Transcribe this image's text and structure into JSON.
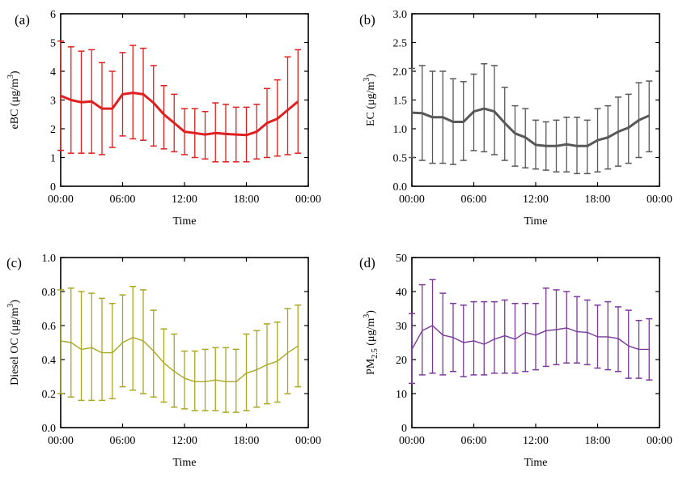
{
  "chart_data": [
    {
      "type": "line",
      "panel_label": "(a)",
      "xlabel": "Time",
      "ylabel": "eBC (μg/m³)",
      "ylabel_parts": {
        "prefix": "eBC (μg/m",
        "sup": "3",
        "suffix": ")"
      },
      "ylim": [
        0,
        6
      ],
      "yticks": [
        0,
        1,
        2,
        3,
        4,
        5,
        6
      ],
      "ytick_labels": [
        "0",
        "1",
        "2",
        "3",
        "4",
        "5",
        "6"
      ],
      "xlim": [
        0,
        24
      ],
      "xticks": [
        0,
        6,
        12,
        18,
        24
      ],
      "xtick_labels": [
        "00:00",
        "06:00",
        "12:00",
        "18:00",
        "00:00"
      ],
      "color": "#e02020",
      "line_weight": "thick",
      "series": [
        {
          "name": "eBC",
          "x": [
            0,
            1,
            2,
            3,
            4,
            5,
            6,
            7,
            8,
            9,
            10,
            11,
            12,
            13,
            14,
            15,
            16,
            17,
            18,
            19,
            20,
            21,
            22,
            23
          ],
          "values": [
            3.15,
            3.0,
            2.92,
            2.95,
            2.7,
            2.7,
            3.2,
            3.25,
            3.2,
            2.9,
            2.5,
            2.2,
            1.9,
            1.85,
            1.8,
            1.85,
            1.82,
            1.8,
            1.78,
            1.9,
            2.2,
            2.35,
            2.65,
            2.95
          ],
          "upper": [
            5.05,
            4.85,
            4.7,
            4.75,
            4.3,
            4.0,
            4.65,
            4.9,
            4.8,
            4.2,
            3.5,
            3.2,
            2.7,
            2.7,
            2.6,
            2.9,
            2.85,
            2.75,
            2.75,
            2.85,
            3.4,
            3.7,
            4.5,
            4.75
          ],
          "lower": [
            1.25,
            1.15,
            1.15,
            1.15,
            1.1,
            1.35,
            1.75,
            1.65,
            1.6,
            1.4,
            1.3,
            1.2,
            1.1,
            1.0,
            0.95,
            0.85,
            0.85,
            0.85,
            0.85,
            0.95,
            1.0,
            1.05,
            1.1,
            1.15
          ]
        }
      ]
    },
    {
      "type": "line",
      "panel_label": "(b)",
      "xlabel": "Time",
      "ylabel": "EC (μg/m³)",
      "ylabel_parts": {
        "prefix": "EC (μg/m",
        "sup": "3",
        "suffix": ")"
      },
      "ylim": [
        0,
        3.0
      ],
      "yticks": [
        0,
        0.5,
        1.0,
        1.5,
        2.0,
        2.5,
        3.0
      ],
      "ytick_labels": [
        "0.0",
        "0.5",
        "1.0",
        "1.5",
        "2.0",
        "2.5",
        "3.0"
      ],
      "xlim": [
        0,
        24
      ],
      "xticks": [
        0,
        6,
        12,
        18,
        24
      ],
      "xtick_labels": [
        "00:00",
        "06:00",
        "12:00",
        "18:00",
        "00:00"
      ],
      "color": "#585858",
      "line_weight": "thick",
      "series": [
        {
          "name": "EC",
          "x": [
            0,
            1,
            2,
            3,
            4,
            5,
            6,
            7,
            8,
            9,
            10,
            11,
            12,
            13,
            14,
            15,
            16,
            17,
            18,
            19,
            20,
            21,
            22,
            23
          ],
          "values": [
            1.28,
            1.27,
            1.2,
            1.2,
            1.12,
            1.12,
            1.3,
            1.35,
            1.3,
            1.1,
            0.92,
            0.85,
            0.72,
            0.7,
            0.7,
            0.73,
            0.7,
            0.7,
            0.8,
            0.85,
            0.95,
            1.02,
            1.15,
            1.23
          ],
          "upper": [
            2.05,
            2.1,
            2.0,
            2.0,
            1.87,
            1.82,
            1.95,
            2.13,
            2.1,
            1.72,
            1.4,
            1.35,
            1.15,
            1.12,
            1.15,
            1.2,
            1.2,
            1.15,
            1.35,
            1.4,
            1.55,
            1.6,
            1.8,
            1.83
          ],
          "lower": [
            0.5,
            0.45,
            0.4,
            0.4,
            0.38,
            0.45,
            0.62,
            0.6,
            0.55,
            0.45,
            0.35,
            0.32,
            0.3,
            0.28,
            0.25,
            0.25,
            0.22,
            0.22,
            0.25,
            0.3,
            0.35,
            0.4,
            0.5,
            0.6
          ]
        }
      ]
    },
    {
      "type": "line",
      "panel_label": "(c)",
      "xlabel": "Time",
      "ylabel": "Diesel OC (μg/m³)",
      "ylabel_parts": {
        "prefix": "Diesel OC (μg/m",
        "sup": "3",
        "suffix": ")"
      },
      "ylim": [
        0,
        1.0
      ],
      "yticks": [
        0,
        0.2,
        0.4,
        0.6,
        0.8,
        1.0
      ],
      "ytick_labels": [
        "0.0",
        "0.2",
        "0.4",
        "0.6",
        "0.8",
        "1.0"
      ],
      "xlim": [
        0,
        24
      ],
      "xticks": [
        0,
        6,
        12,
        18,
        24
      ],
      "xtick_labels": [
        "00:00",
        "06:00",
        "12:00",
        "18:00",
        "00:00"
      ],
      "color": "#aaa823",
      "line_weight": "thin",
      "series": [
        {
          "name": "Diesel OC",
          "x": [
            0,
            1,
            2,
            3,
            4,
            5,
            6,
            7,
            8,
            9,
            10,
            11,
            12,
            13,
            14,
            15,
            16,
            17,
            18,
            19,
            20,
            21,
            22,
            23
          ],
          "values": [
            0.51,
            0.5,
            0.46,
            0.47,
            0.44,
            0.44,
            0.5,
            0.53,
            0.51,
            0.45,
            0.38,
            0.33,
            0.29,
            0.27,
            0.27,
            0.28,
            0.27,
            0.27,
            0.32,
            0.34,
            0.37,
            0.39,
            0.44,
            0.48
          ],
          "upper": [
            0.81,
            0.82,
            0.8,
            0.79,
            0.76,
            0.73,
            0.78,
            0.83,
            0.81,
            0.69,
            0.58,
            0.55,
            0.45,
            0.45,
            0.46,
            0.47,
            0.47,
            0.46,
            0.55,
            0.57,
            0.61,
            0.62,
            0.7,
            0.72
          ],
          "lower": [
            0.2,
            0.18,
            0.16,
            0.16,
            0.16,
            0.17,
            0.24,
            0.22,
            0.2,
            0.18,
            0.15,
            0.12,
            0.11,
            0.1,
            0.1,
            0.1,
            0.09,
            0.09,
            0.1,
            0.12,
            0.14,
            0.15,
            0.2,
            0.24
          ]
        }
      ]
    },
    {
      "type": "line",
      "panel_label": "(d)",
      "xlabel": "Time",
      "ylabel": "PM2.5 (μg/m³)",
      "ylabel_parts": {
        "prefix": "PM",
        "sub": "2.5",
        "mid": " (μg/m",
        "sup": "3",
        "suffix": ")"
      },
      "ylim": [
        0,
        50
      ],
      "yticks": [
        0,
        10,
        20,
        30,
        40,
        50
      ],
      "ytick_labels": [
        "0",
        "10",
        "20",
        "30",
        "40",
        "50"
      ],
      "xlim": [
        0,
        24
      ],
      "xticks": [
        0,
        6,
        12,
        18,
        24
      ],
      "xtick_labels": [
        "00:00",
        "06:00",
        "12:00",
        "18:00",
        "00:00"
      ],
      "color": "#7b3a9b",
      "line_weight": "thin",
      "series": [
        {
          "name": "PM2.5",
          "x": [
            0,
            1,
            2,
            3,
            4,
            5,
            6,
            7,
            8,
            9,
            10,
            11,
            12,
            13,
            14,
            15,
            16,
            17,
            18,
            19,
            20,
            21,
            22,
            23
          ],
          "values": [
            23,
            28.5,
            30,
            27.2,
            26.5,
            25,
            25.5,
            24.5,
            26,
            27,
            26,
            28,
            27.2,
            28.5,
            28.8,
            29.3,
            28.2,
            28,
            26.7,
            26.7,
            26.2,
            24,
            23,
            23
          ],
          "upper": [
            33.5,
            42,
            43.5,
            39.5,
            36.5,
            36,
            37,
            37,
            37,
            37.5,
            36.5,
            36.5,
            36.5,
            41,
            40.5,
            40,
            38.5,
            37.5,
            36,
            37,
            35.5,
            34.5,
            31.5,
            32
          ],
          "lower": [
            13,
            15.5,
            16,
            15.5,
            16.5,
            15,
            15.5,
            15.5,
            16,
            16,
            16,
            16.5,
            17,
            18,
            18.5,
            19,
            19,
            18.5,
            17.5,
            17,
            16.5,
            14.5,
            14.5,
            14
          ]
        }
      ]
    }
  ]
}
